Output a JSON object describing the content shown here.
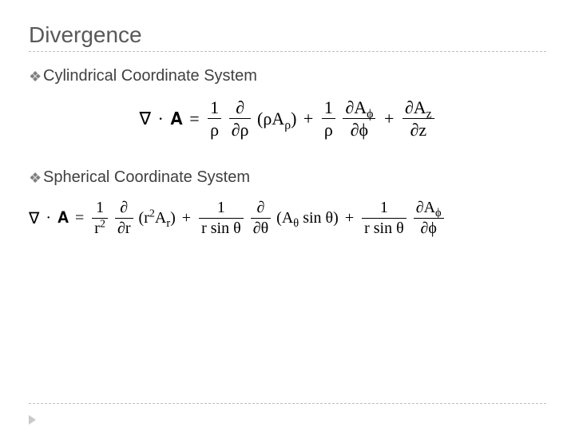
{
  "title": "Divergence",
  "bullets": {
    "cylindrical": "Cylindrical Coordinate System",
    "spherical": "Spherical Coordinate System"
  },
  "symbols": {
    "nabla": "∇",
    "dot": "·",
    "bold_A": "𝐀",
    "partial": "∂",
    "rho": "ρ",
    "phi": "ϕ",
    "theta": "θ",
    "sin": "sin",
    "plus": "+",
    "equals": "=",
    "r": "r",
    "z": "z",
    "one": "1",
    "A": "A",
    "lparen": "(",
    "rparen": ")",
    "sq": "2"
  },
  "style": {
    "title_color": "#595959",
    "text_color": "#404040",
    "rule_color": "#bfbfbf",
    "formula_color": "#000000",
    "background": "#ffffff",
    "title_fontsize": 28,
    "item_fontsize": 20,
    "formula_fontsize": 22,
    "formula_small_fontsize": 20
  }
}
